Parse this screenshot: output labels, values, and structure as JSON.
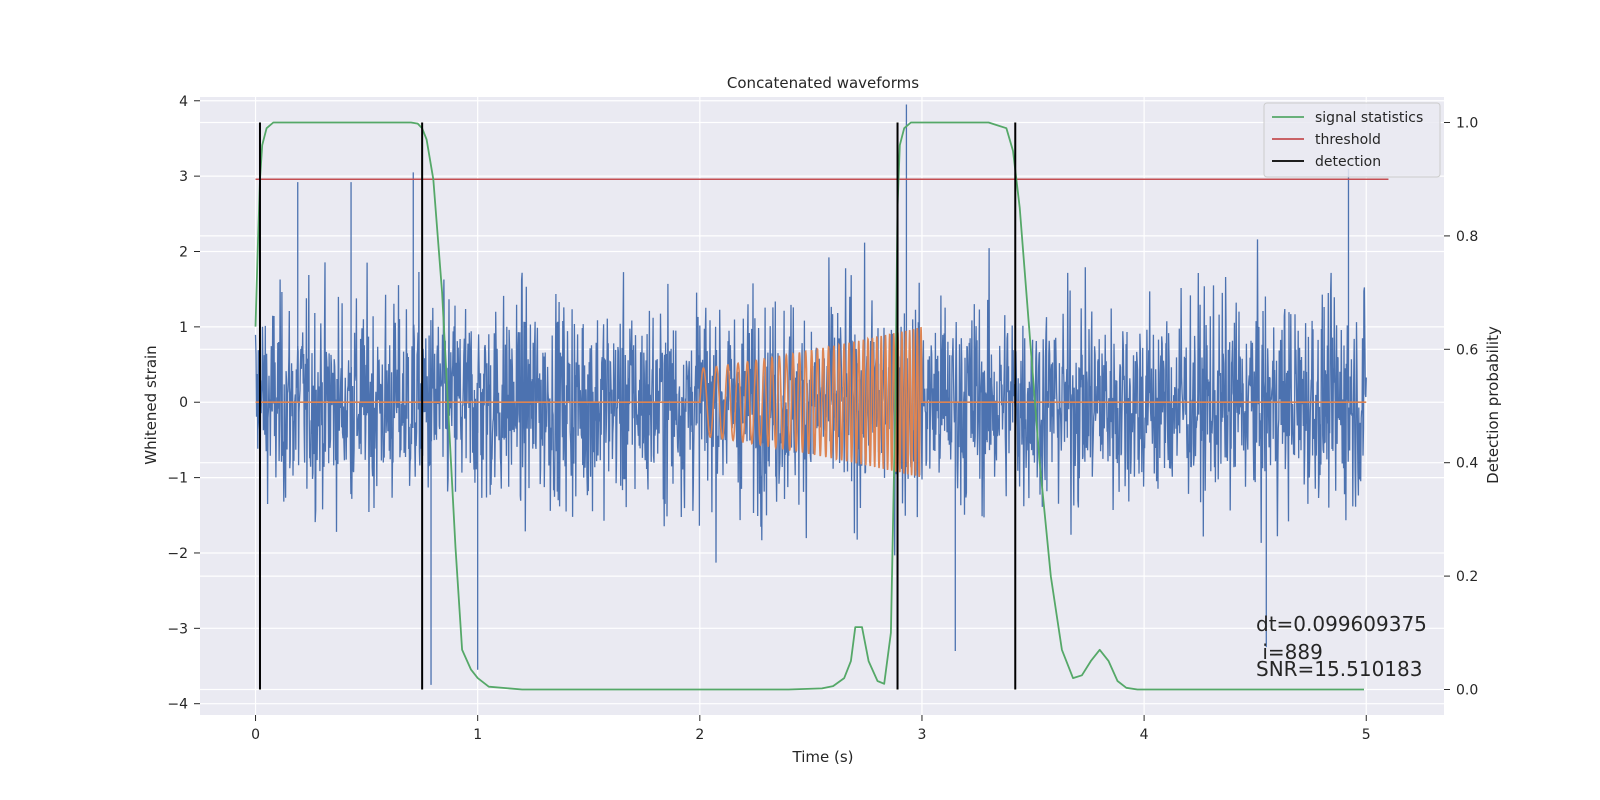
{
  "chart_data": {
    "type": "line",
    "title": "Concatenated waveforms",
    "xlabel": "Time (s)",
    "ylabel": "Whitened strain",
    "ylabel_right": "Detection probability",
    "xlim": [
      -0.25,
      5.35
    ],
    "ylim": [
      -4.15,
      4.05
    ],
    "ylim_right": [
      -0.045,
      1.045
    ],
    "xticks": [
      0,
      1,
      2,
      3,
      4,
      5
    ],
    "xtick_labels": [
      "0",
      "1",
      "2",
      "3",
      "4",
      "5"
    ],
    "yticks": [
      -4,
      -3,
      -2,
      -1,
      0,
      1,
      2,
      3,
      4
    ],
    "ytick_labels": [
      "−4",
      "−3",
      "−2",
      "−1",
      "0",
      "1",
      "2",
      "3",
      "4"
    ],
    "yticks_right": [
      0.0,
      0.2,
      0.4,
      0.6,
      0.8,
      1.0
    ],
    "ytick_labels_right": [
      "0.0",
      "0.2",
      "0.4",
      "0.6",
      "0.8",
      "1.0"
    ],
    "grid": true,
    "legend_position": "top-right",
    "legend": [
      {
        "label": "signal statistics",
        "color": "#55a868"
      },
      {
        "label": "threshold",
        "color": "#c44e52"
      },
      {
        "label": "detection",
        "color": "#000000"
      }
    ],
    "series": [
      {
        "kind": "noise",
        "color": "#4c72b0",
        "x_range": [
          0,
          5
        ],
        "amplitude": 1.0,
        "extremes": [
          {
            "x": 0.19,
            "y": 2.92
          },
          {
            "x": 0.43,
            "y": 2.92
          },
          {
            "x": 0.71,
            "y": 3.05
          },
          {
            "x": 0.79,
            "y": -3.75
          },
          {
            "x": 1.0,
            "y": -3.55
          },
          {
            "x": 2.93,
            "y": 3.95
          },
          {
            "x": 2.89,
            "y": -3.8
          },
          {
            "x": 4.92,
            "y": 3.1
          },
          {
            "x": 3.15,
            "y": -3.3
          },
          {
            "x": 4.55,
            "y": -3.25
          }
        ]
      },
      {
        "kind": "chirp",
        "color": "#dd8452",
        "x_range": [
          0,
          5
        ],
        "chirp_start": 2.0,
        "chirp_end": 3.0,
        "f_start": 15,
        "f_end": 60,
        "amp_start": 0.45,
        "amp_end": 1.0
      },
      {
        "name": "signal statistics",
        "axis": "right",
        "color": "#55a868",
        "x": [
          0.0,
          0.01,
          0.02,
          0.03,
          0.05,
          0.08,
          0.12,
          0.2,
          0.4,
          0.6,
          0.65,
          0.7,
          0.73,
          0.75,
          0.77,
          0.8,
          0.84,
          0.88,
          0.9,
          0.93,
          0.97,
          1.0,
          1.05,
          1.2,
          1.5,
          2.0,
          2.4,
          2.55,
          2.6,
          2.65,
          2.68,
          2.7,
          2.73,
          2.76,
          2.8,
          2.83,
          2.86,
          2.88,
          2.89,
          2.9,
          2.92,
          2.95,
          3.0,
          3.3,
          3.38,
          3.41,
          3.44,
          3.48,
          3.53,
          3.58,
          3.63,
          3.68,
          3.72,
          3.76,
          3.8,
          3.84,
          3.88,
          3.92,
          3.97,
          4.2,
          4.6,
          4.99
        ],
        "y": [
          0.64,
          0.78,
          0.9,
          0.96,
          0.99,
          1.0,
          1.0,
          1.0,
          1.0,
          1.0,
          1.0,
          1.0,
          0.998,
          0.99,
          0.97,
          0.9,
          0.7,
          0.4,
          0.25,
          0.07,
          0.035,
          0.02,
          0.005,
          0.0,
          0.0,
          0.0,
          0.0,
          0.002,
          0.006,
          0.02,
          0.05,
          0.11,
          0.11,
          0.05,
          0.015,
          0.01,
          0.1,
          0.5,
          0.85,
          0.96,
          0.99,
          1.0,
          1.0,
          1.0,
          0.99,
          0.95,
          0.85,
          0.65,
          0.4,
          0.2,
          0.07,
          0.02,
          0.025,
          0.05,
          0.07,
          0.05,
          0.015,
          0.003,
          0.0,
          0.0,
          0.0,
          0.0
        ]
      },
      {
        "name": "threshold",
        "axis": "right",
        "color": "#c44e52",
        "x": [
          0.0,
          5.1
        ],
        "y": [
          0.9,
          0.9
        ]
      }
    ],
    "detections": [
      0.02,
      0.75,
      2.89,
      3.42
    ],
    "detection_range_right": [
      0.0,
      1.0
    ],
    "annotations": [
      {
        "text": "dt=0.099609375"
      },
      {
        "text": " i=889"
      },
      {
        "text": "SNR=15.510183"
      }
    ]
  }
}
